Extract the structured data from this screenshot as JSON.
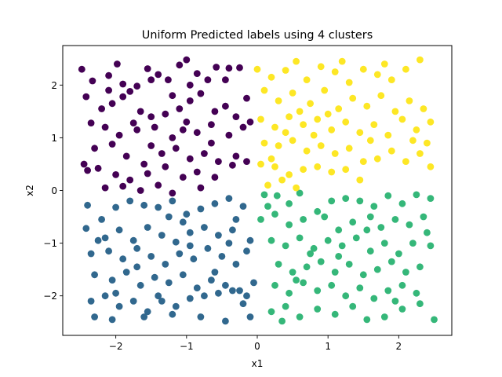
{
  "chart_data": {
    "type": "scatter",
    "title": "Uniform Predicted labels using 4 clusters",
    "xlabel": "x1",
    "ylabel": "x2",
    "xlim": [
      -2.75,
      2.75
    ],
    "ylim": [
      -2.75,
      2.75
    ],
    "xticks": [
      -2,
      -1,
      0,
      1,
      2
    ],
    "xtick_labels": [
      "−2",
      "−1",
      "0",
      "1",
      "2"
    ],
    "yticks": [
      -2,
      -1,
      0,
      1,
      2
    ],
    "ytick_labels": [
      "−2",
      "−1",
      "0",
      "1",
      "2"
    ],
    "grid": false,
    "legend": "none",
    "cluster_colors": [
      "#440154",
      "#31688e",
      "#35b779",
      "#fde725"
    ],
    "series": [
      {
        "color": "#440154",
        "points": [
          [
            -2.48,
            2.3
          ],
          [
            -2.33,
            2.08
          ],
          [
            -2.1,
            2.18
          ],
          [
            -1.98,
            2.4
          ],
          [
            -1.9,
            2.02
          ],
          [
            -1.8,
            1.88
          ],
          [
            -1.7,
            1.98
          ],
          [
            -1.55,
            2.31
          ],
          [
            -1.4,
            2.2
          ],
          [
            -1.26,
            2.1
          ],
          [
            -1.1,
            2.38
          ],
          [
            -1.0,
            2.48
          ],
          [
            -0.85,
            2.22
          ],
          [
            -0.7,
            2.1
          ],
          [
            -0.58,
            2.34
          ],
          [
            -0.4,
            2.32
          ],
          [
            -0.25,
            2.33
          ],
          [
            -2.42,
            1.78
          ],
          [
            -2.2,
            1.55
          ],
          [
            -2.05,
            1.65
          ],
          [
            -1.9,
            1.78
          ],
          [
            -1.65,
            1.5
          ],
          [
            -1.5,
            1.4
          ],
          [
            -1.3,
            1.45
          ],
          [
            -1.1,
            1.55
          ],
          [
            -0.95,
            1.7
          ],
          [
            -0.8,
            1.84
          ],
          [
            -0.6,
            1.5
          ],
          [
            -0.45,
            1.6
          ],
          [
            -0.3,
            1.4
          ],
          [
            -0.1,
            1.3
          ],
          [
            -2.35,
            1.28
          ],
          [
            -2.15,
            1.2
          ],
          [
            -1.95,
            1.05
          ],
          [
            -1.7,
            1.15
          ],
          [
            -1.45,
            1.2
          ],
          [
            -1.2,
            1.0
          ],
          [
            -1.0,
            1.3
          ],
          [
            -0.85,
            1.1
          ],
          [
            -0.65,
            1.25
          ],
          [
            -0.4,
            1.05
          ],
          [
            -0.2,
            1.2
          ],
          [
            -2.3,
            0.8
          ],
          [
            -2.05,
            0.88
          ],
          [
            -1.85,
            0.65
          ],
          [
            -1.6,
            0.5
          ],
          [
            -1.35,
            0.7
          ],
          [
            -1.15,
            0.8
          ],
          [
            -0.95,
            0.6
          ],
          [
            -0.75,
            0.7
          ],
          [
            -0.55,
            0.55
          ],
          [
            -0.3,
            0.65
          ],
          [
            -2.45,
            0.5
          ],
          [
            -2.25,
            0.42
          ],
          [
            -2.0,
            0.3
          ],
          [
            -1.8,
            0.2
          ],
          [
            -1.55,
            0.32
          ],
          [
            -1.3,
            0.45
          ],
          [
            -1.05,
            0.25
          ],
          [
            -0.85,
            0.35
          ],
          [
            -0.6,
            0.25
          ],
          [
            -0.35,
            0.48
          ],
          [
            -0.15,
            0.55
          ],
          [
            -2.15,
            0.05
          ],
          [
            -1.9,
            0.08
          ],
          [
            -1.65,
            0.0
          ],
          [
            -1.4,
            0.1
          ],
          [
            -1.2,
            -0.05
          ],
          [
            -0.8,
            0.05
          ],
          [
            -1.5,
            2.1
          ],
          [
            -0.95,
            2.0
          ],
          [
            -0.15,
            1.75
          ],
          [
            -1.75,
            1.28
          ],
          [
            -1.05,
            1.15
          ],
          [
            -2.4,
            0.38
          ],
          [
            -0.65,
            0.9
          ],
          [
            -1.5,
            0.85
          ],
          [
            -2.1,
            1.9
          ],
          [
            -1.2,
            1.8
          ],
          [
            -0.45,
            2.1
          ]
        ]
      },
      {
        "color": "#31688e",
        "points": [
          [
            -2.4,
            -0.28
          ],
          [
            -2.2,
            -0.55
          ],
          [
            -2.0,
            -0.32
          ],
          [
            -1.8,
            -0.2
          ],
          [
            -1.6,
            -0.28
          ],
          [
            -1.4,
            -0.32
          ],
          [
            -1.2,
            -0.2
          ],
          [
            -1.0,
            -0.45
          ],
          [
            -0.8,
            -0.35
          ],
          [
            -0.6,
            -0.25
          ],
          [
            -0.4,
            -0.15
          ],
          [
            -0.2,
            -0.3
          ],
          [
            -2.42,
            -0.72
          ],
          [
            -2.15,
            -0.9
          ],
          [
            -1.95,
            -0.75
          ],
          [
            -1.75,
            -0.95
          ],
          [
            -1.55,
            -0.7
          ],
          [
            -1.35,
            -0.85
          ],
          [
            -1.15,
            -0.98
          ],
          [
            -0.95,
            -0.8
          ],
          [
            -0.75,
            -0.7
          ],
          [
            -0.55,
            -0.85
          ],
          [
            -0.35,
            -0.75
          ],
          [
            -0.1,
            -0.95
          ],
          [
            -2.35,
            -1.2
          ],
          [
            -2.1,
            -1.15
          ],
          [
            -1.9,
            -1.3
          ],
          [
            -1.7,
            -1.1
          ],
          [
            -1.5,
            -1.25
          ],
          [
            -1.3,
            -1.4
          ],
          [
            -1.1,
            -1.2
          ],
          [
            -0.9,
            -1.3
          ],
          [
            -0.7,
            -1.1
          ],
          [
            -0.5,
            -1.25
          ],
          [
            -0.3,
            -1.4
          ],
          [
            -0.15,
            -1.15
          ],
          [
            -2.3,
            -1.6
          ],
          [
            -2.05,
            -1.7
          ],
          [
            -1.85,
            -1.55
          ],
          [
            -1.65,
            -1.8
          ],
          [
            -1.45,
            -1.65
          ],
          [
            -1.25,
            -1.75
          ],
          [
            -1.05,
            -1.6
          ],
          [
            -0.85,
            -1.85
          ],
          [
            -0.65,
            -1.7
          ],
          [
            -0.45,
            -1.8
          ],
          [
            -0.25,
            -1.9
          ],
          [
            -0.05,
            -1.75
          ],
          [
            -2.35,
            -2.1
          ],
          [
            -2.15,
            -2.0
          ],
          [
            -1.95,
            -2.2
          ],
          [
            -1.75,
            -2.1
          ],
          [
            -1.55,
            -2.3
          ],
          [
            -1.35,
            -2.1
          ],
          [
            -1.15,
            -2.2
          ],
          [
            -0.95,
            -2.05
          ],
          [
            -0.75,
            -2.0
          ],
          [
            -0.55,
            -1.95
          ],
          [
            -0.35,
            -1.9
          ],
          [
            -0.15,
            -2.0
          ],
          [
            -2.3,
            -2.4
          ],
          [
            -2.05,
            -2.45
          ],
          [
            -1.6,
            -2.4
          ],
          [
            -1.2,
            -2.35
          ],
          [
            -0.8,
            -2.4
          ],
          [
            -0.45,
            -2.48
          ],
          [
            -0.1,
            -2.4
          ],
          [
            -0.3,
            -0.55
          ],
          [
            -1.7,
            -1.45
          ],
          [
            -0.95,
            -1.05
          ],
          [
            -2.25,
            -0.95
          ],
          [
            -0.6,
            -1.55
          ],
          [
            -1.4,
            -2.0
          ],
          [
            -0.2,
            -2.15
          ],
          [
            -1.05,
            -0.6
          ],
          [
            -0.4,
            -1.0
          ],
          [
            -2.0,
            -1.95
          ],
          [
            -1.25,
            -0.5
          ]
        ]
      },
      {
        "color": "#35b779",
        "points": [
          [
            0.1,
            -0.08
          ],
          [
            0.28,
            -0.1
          ],
          [
            0.45,
            -0.25
          ],
          [
            0.6,
            -0.05
          ],
          [
            0.85,
            -0.4
          ],
          [
            1.05,
            -0.2
          ],
          [
            1.25,
            -0.15
          ],
          [
            1.45,
            -0.2
          ],
          [
            1.65,
            -0.3
          ],
          [
            1.85,
            -0.1
          ],
          [
            2.05,
            -0.25
          ],
          [
            2.25,
            -0.08
          ],
          [
            2.45,
            -0.15
          ],
          [
            0.05,
            -0.55
          ],
          [
            0.25,
            -0.45
          ],
          [
            0.45,
            -0.65
          ],
          [
            0.65,
            -0.55
          ],
          [
            0.95,
            -0.5
          ],
          [
            1.15,
            -0.75
          ],
          [
            1.35,
            -0.6
          ],
          [
            1.55,
            -0.75
          ],
          [
            1.75,
            -0.7
          ],
          [
            1.95,
            -0.55
          ],
          [
            2.15,
            -0.65
          ],
          [
            2.35,
            -0.5
          ],
          [
            0.2,
            -0.95
          ],
          [
            0.4,
            -1.05
          ],
          [
            0.6,
            -0.9
          ],
          [
            0.8,
            -1.1
          ],
          [
            1.0,
            -0.95
          ],
          [
            1.2,
            -1.05
          ],
          [
            1.4,
            -0.9
          ],
          [
            1.6,
            -1.15
          ],
          [
            1.8,
            -1.0
          ],
          [
            2.0,
            -1.2
          ],
          [
            2.2,
            -1.0
          ],
          [
            2.45,
            -1.05
          ],
          [
            0.3,
            -1.4
          ],
          [
            0.5,
            -1.55
          ],
          [
            0.7,
            -1.45
          ],
          [
            0.9,
            -1.35
          ],
          [
            1.1,
            -1.55
          ],
          [
            1.3,
            -1.4
          ],
          [
            1.5,
            -1.6
          ],
          [
            1.7,
            -1.5
          ],
          [
            1.9,
            -1.35
          ],
          [
            2.1,
            -1.55
          ],
          [
            2.3,
            -1.45
          ],
          [
            0.25,
            -1.8
          ],
          [
            0.45,
            -1.95
          ],
          [
            0.65,
            -1.75
          ],
          [
            0.85,
            -1.9
          ],
          [
            1.05,
            -1.8
          ],
          [
            1.25,
            -2.0
          ],
          [
            1.45,
            -1.85
          ],
          [
            1.65,
            -2.05
          ],
          [
            1.85,
            -1.9
          ],
          [
            2.05,
            -1.8
          ],
          [
            2.25,
            -1.95
          ],
          [
            0.2,
            -2.3
          ],
          [
            0.4,
            -2.2
          ],
          [
            0.6,
            -2.4
          ],
          [
            0.85,
            -2.25
          ],
          [
            1.1,
            -2.35
          ],
          [
            1.35,
            -2.2
          ],
          [
            1.55,
            -2.45
          ],
          [
            1.8,
            -2.4
          ],
          [
            2.05,
            -2.25
          ],
          [
            2.5,
            -2.45
          ],
          [
            0.35,
            -2.48
          ],
          [
            0.75,
            -1.2
          ],
          [
            1.6,
            -0.5
          ],
          [
            2.4,
            -0.8
          ],
          [
            0.55,
            -1.7
          ],
          [
            1.95,
            -2.1
          ],
          [
            1.15,
            -1.25
          ],
          [
            0.15,
            -0.3
          ],
          [
            2.3,
            -2.15
          ]
        ]
      },
      {
        "color": "#fde725",
        "points": [
          [
            0.0,
            2.3
          ],
          [
            0.2,
            2.15
          ],
          [
            0.4,
            2.28
          ],
          [
            0.55,
            2.45
          ],
          [
            0.7,
            2.1
          ],
          [
            0.9,
            2.35
          ],
          [
            1.1,
            2.25
          ],
          [
            1.3,
            2.05
          ],
          [
            1.5,
            2.3
          ],
          [
            1.7,
            2.2
          ],
          [
            1.9,
            2.1
          ],
          [
            2.1,
            2.3
          ],
          [
            2.3,
            2.48
          ],
          [
            0.1,
            1.9
          ],
          [
            0.3,
            1.7
          ],
          [
            0.5,
            1.85
          ],
          [
            0.75,
            1.65
          ],
          [
            0.95,
            1.9
          ],
          [
            1.15,
            1.55
          ],
          [
            1.35,
            1.75
          ],
          [
            1.55,
            1.6
          ],
          [
            1.75,
            1.8
          ],
          [
            1.95,
            1.5
          ],
          [
            2.15,
            1.7
          ],
          [
            2.35,
            1.55
          ],
          [
            0.05,
            1.35
          ],
          [
            0.25,
            1.2
          ],
          [
            0.45,
            1.4
          ],
          [
            0.65,
            1.25
          ],
          [
            0.85,
            1.35
          ],
          [
            1.05,
            1.15
          ],
          [
            1.25,
            1.3
          ],
          [
            1.45,
            1.1
          ],
          [
            1.65,
            1.25
          ],
          [
            1.85,
            1.05
          ],
          [
            2.05,
            1.35
          ],
          [
            2.25,
            1.15
          ],
          [
            2.45,
            1.3
          ],
          [
            0.1,
            0.9
          ],
          [
            0.3,
            0.85
          ],
          [
            0.5,
            0.95
          ],
          [
            0.7,
            0.75
          ],
          [
            0.9,
            0.85
          ],
          [
            1.1,
            0.7
          ],
          [
            1.3,
            0.8
          ],
          [
            1.5,
            0.55
          ],
          [
            1.7,
            0.6
          ],
          [
            1.9,
            0.75
          ],
          [
            2.1,
            0.55
          ],
          [
            2.3,
            0.7
          ],
          [
            2.45,
            0.45
          ],
          [
            0.05,
            0.5
          ],
          [
            0.25,
            0.45
          ],
          [
            0.45,
            0.3
          ],
          [
            0.65,
            0.4
          ],
          [
            0.85,
            0.45
          ],
          [
            1.05,
            0.35
          ],
          [
            1.25,
            0.4
          ],
          [
            1.45,
            0.2
          ],
          [
            0.15,
            0.1
          ],
          [
            0.35,
            0.2
          ],
          [
            0.55,
            0.05
          ],
          [
            0.6,
            1.5
          ],
          [
            1.8,
            2.4
          ],
          [
            0.2,
            0.6
          ],
          [
            2.2,
            0.95
          ],
          [
            1.0,
            1.45
          ],
          [
            0.8,
            1.05
          ],
          [
            2.4,
            0.9
          ],
          [
            1.6,
            0.95
          ],
          [
            0.4,
            1.1
          ],
          [
            1.2,
            2.45
          ]
        ]
      }
    ]
  }
}
